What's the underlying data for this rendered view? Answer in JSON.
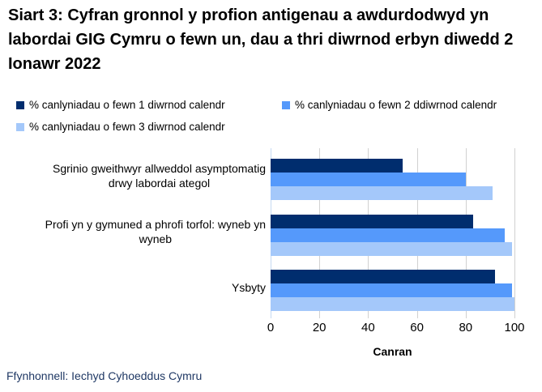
{
  "title": "Siart 3: Cyfran gronnol y profion antigenau a awdurdodwyd yn labordai GIG Cymru o fewn un, dau a thri diwrnod erbyn diwedd 2 Ionawr 2022",
  "footer": {
    "source": "Ffynhonnell: Iechyd Cyhoeddus Cymru"
  },
  "colors": {
    "series1": "#002d6e",
    "series2": "#5599fb",
    "series3": "#a4c8fa",
    "gridline": "#d1d1d1",
    "zero_axis": "#c6d9f1",
    "footer_text": "#1f3864"
  },
  "chart_data": {
    "type": "bar",
    "orientation": "horizontal",
    "title": "Siart 3: Cyfran gronnol y profion antigenau a awdurdodwyd yn labordai GIG Cymru o fewn un, dau a thri diwrnod erbyn diwedd 2 Ionawr 2022",
    "categories": [
      "Sgrinio gweithwyr allweddol asymptomatig\ndrwy labordai ategol",
      "Profi yn y gymuned a phrofi torfol: wyneb yn\nwyneb",
      "Ysbyty"
    ],
    "series": [
      {
        "name": "% canlyniadau o fewn 1 diwrnod calendr",
        "color": "#002d6e",
        "values": [
          54,
          83,
          92
        ]
      },
      {
        "name": "% canlyniadau o fewn 2 ddiwrnod calendr",
        "color": "#5599fb",
        "values": [
          80,
          96,
          99
        ]
      },
      {
        "name": "% canlyniadau o fewn 3 diwrnod calendr",
        "color": "#a4c8fa",
        "values": [
          91,
          99,
          100
        ]
      }
    ],
    "xlabel": "Canran",
    "xlim": [
      0,
      100
    ],
    "xticks": [
      0,
      20,
      40,
      60,
      80,
      100
    ],
    "grid": true,
    "legend_position": "top-left"
  }
}
